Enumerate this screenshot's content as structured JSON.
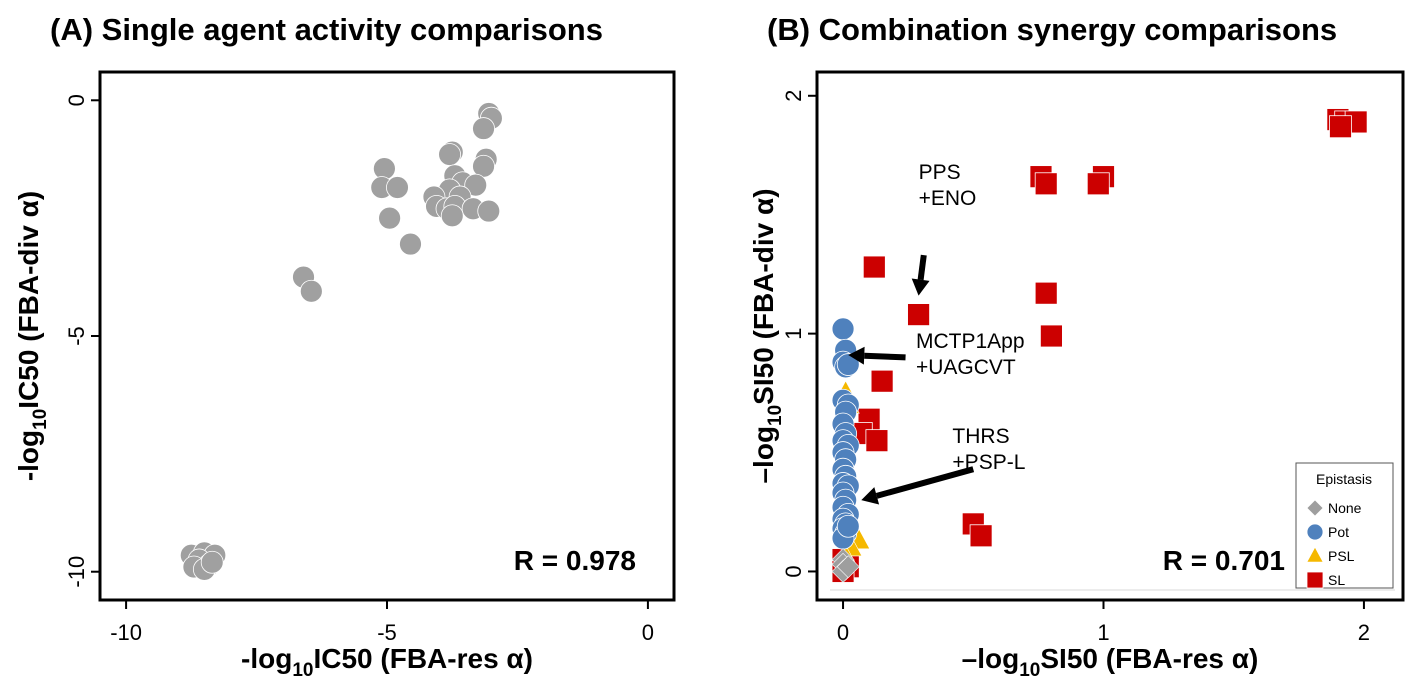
{
  "chart_data": [
    {
      "type": "scatter",
      "title": "(A) Single agent activity comparisons",
      "xlabel": {
        "pre": "-log",
        "sub": "10",
        "post": "IC50 (FBA-res α)"
      },
      "ylabel": {
        "pre": "-log",
        "sub": "10",
        "post": "IC50 (FBA-div α)"
      },
      "xlim": [
        -10.5,
        0.5
      ],
      "ylim": [
        -10.6,
        0.6
      ],
      "xticks": [
        -10,
        -5,
        0
      ],
      "yticks": [
        -10,
        -5,
        0
      ],
      "xtick_labels": [
        "-10",
        "-5",
        "0"
      ],
      "ytick_labels": [
        "-10",
        "-5",
        "0"
      ],
      "r_label": "R = 0.978",
      "point_color": "#a0a0a0",
      "points": [
        [
          -3.05,
          -0.28
        ],
        [
          -3.0,
          -0.38
        ],
        [
          -3.15,
          -0.6
        ],
        [
          -3.75,
          -1.1
        ],
        [
          -3.8,
          -1.15
        ],
        [
          -3.1,
          -1.25
        ],
        [
          -3.15,
          -1.4
        ],
        [
          -3.7,
          -1.6
        ],
        [
          -3.55,
          -1.75
        ],
        [
          -3.3,
          -1.8
        ],
        [
          -3.8,
          -1.9
        ],
        [
          -4.1,
          -2.05
        ],
        [
          -3.6,
          -2.05
        ],
        [
          -4.05,
          -2.25
        ],
        [
          -3.85,
          -2.3
        ],
        [
          -3.7,
          -2.25
        ],
        [
          -3.35,
          -2.3
        ],
        [
          -3.05,
          -2.35
        ],
        [
          -3.75,
          -2.45
        ],
        [
          -5.05,
          -1.45
        ],
        [
          -5.1,
          -1.85
        ],
        [
          -4.8,
          -1.85
        ],
        [
          -4.95,
          -2.5
        ],
        [
          -4.55,
          -3.05
        ],
        [
          -6.6,
          -3.75
        ],
        [
          -6.45,
          -4.05
        ],
        [
          -8.75,
          -9.65
        ],
        [
          -8.5,
          -9.6
        ],
        [
          -8.3,
          -9.65
        ],
        [
          -8.6,
          -9.75
        ],
        [
          -8.4,
          -9.85
        ],
        [
          -8.7,
          -9.9
        ],
        [
          -8.5,
          -9.95
        ],
        [
          -8.35,
          -9.8
        ]
      ]
    },
    {
      "type": "scatter",
      "title": "(B) Combination synergy comparisons",
      "xlabel": {
        "pre": "–log",
        "sub": "10",
        "post": "SI50 (FBA-res α)"
      },
      "ylabel": {
        "pre": "–log",
        "sub": "10",
        "post": "SI50 (FBA-div α)"
      },
      "xlim": [
        -0.1,
        2.15
      ],
      "ylim": [
        -0.12,
        2.1
      ],
      "xticks": [
        0,
        1,
        2
      ],
      "yticks": [
        0,
        1,
        2
      ],
      "xtick_labels": [
        "0",
        "1",
        "2"
      ],
      "ytick_labels": [
        "0",
        "1",
        "2"
      ],
      "r_label": "R = 0.701",
      "legend": {
        "title": "Epistasis",
        "position": "bottom-right",
        "items": [
          {
            "label": "None",
            "shape": "diamond",
            "color": "#9e9e9e"
          },
          {
            "label": "Pot",
            "shape": "circle",
            "color": "#4f81bd"
          },
          {
            "label": "PSL",
            "shape": "triangle",
            "color": "#f5b800"
          },
          {
            "label": "SL",
            "shape": "square",
            "color": "#cc0000"
          }
        ]
      },
      "annotations": [
        {
          "lines": [
            "PPS",
            "+ENO"
          ],
          "x": 0.29,
          "y": 1.65,
          "arrow_from": [
            0.31,
            1.33
          ],
          "arrow_to": [
            0.29,
            1.16
          ]
        },
        {
          "lines": [
            "MCTP1App",
            "+UAGCVT"
          ],
          "x": 0.28,
          "y": 0.94,
          "arrow_from": [
            0.24,
            0.9
          ],
          "arrow_to": [
            0.02,
            0.91
          ]
        },
        {
          "lines": [
            "THRS",
            "+PSP-L"
          ],
          "x": 0.42,
          "y": 0.54,
          "arrow_from": [
            0.5,
            0.43
          ],
          "arrow_to": [
            0.07,
            0.3
          ]
        }
      ],
      "series": [
        {
          "name": "SL",
          "shape": "square",
          "color": "#cc0000",
          "points": [
            [
              1.9,
              1.9
            ],
            [
              1.93,
              1.89
            ],
            [
              1.97,
              1.89
            ],
            [
              1.91,
              1.87
            ],
            [
              0.76,
              1.66
            ],
            [
              0.78,
              1.63
            ],
            [
              1.0,
              1.66
            ],
            [
              0.98,
              1.63
            ],
            [
              0.78,
              1.17
            ],
            [
              0.8,
              0.99
            ],
            [
              0.12,
              1.28
            ],
            [
              0.29,
              1.08
            ],
            [
              0.15,
              0.8
            ],
            [
              0.1,
              0.64
            ],
            [
              0.07,
              0.58
            ],
            [
              0.13,
              0.55
            ],
            [
              0.5,
              0.2
            ],
            [
              0.53,
              0.15
            ],
            [
              0.0,
              0.05
            ],
            [
              0.02,
              0.02
            ],
            [
              0.0,
              0.0
            ]
          ]
        },
        {
          "name": "PSL",
          "shape": "triangle",
          "color": "#f5b800",
          "points": [
            [
              0.01,
              0.75
            ],
            [
              0.02,
              0.7
            ],
            [
              0.06,
              0.13
            ],
            [
              0.03,
              0.1
            ],
            [
              0.01,
              0.06
            ]
          ]
        },
        {
          "name": "Pot",
          "shape": "circle",
          "color": "#4f81bd",
          "points": [
            [
              0.0,
              1.02
            ],
            [
              0.01,
              0.93
            ],
            [
              0.0,
              0.88
            ],
            [
              0.01,
              0.86
            ],
            [
              0.02,
              0.87
            ],
            [
              0.0,
              0.72
            ],
            [
              0.02,
              0.7
            ],
            [
              0.01,
              0.67
            ],
            [
              0.0,
              0.62
            ],
            [
              0.01,
              0.58
            ],
            [
              0.0,
              0.55
            ],
            [
              0.02,
              0.53
            ],
            [
              0.0,
              0.5
            ],
            [
              0.01,
              0.47
            ],
            [
              0.0,
              0.43
            ],
            [
              0.01,
              0.4
            ],
            [
              0.0,
              0.37
            ],
            [
              0.02,
              0.36
            ],
            [
              0.0,
              0.33
            ],
            [
              0.01,
              0.3
            ],
            [
              0.0,
              0.27
            ],
            [
              0.02,
              0.24
            ],
            [
              0.0,
              0.22
            ],
            [
              0.01,
              0.2
            ],
            [
              0.0,
              0.18
            ],
            [
              0.01,
              0.16
            ],
            [
              0.0,
              0.14
            ],
            [
              0.02,
              0.19
            ]
          ]
        },
        {
          "name": "None",
          "shape": "diamond",
          "color": "#9e9e9e",
          "points": [
            [
              0.0,
              0.05
            ],
            [
              0.0,
              0.03
            ],
            [
              0.01,
              0.01
            ],
            [
              0.0,
              0.0
            ],
            [
              0.02,
              0.02
            ]
          ]
        }
      ]
    }
  ]
}
